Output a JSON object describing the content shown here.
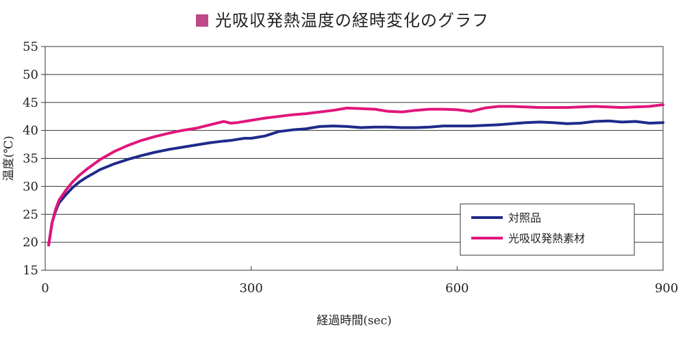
{
  "chart_data": {
    "type": "line",
    "title": "光吸収発熱温度の経時変化のグラフ",
    "title_marker_color": "#c0498a",
    "xlabel": "経過時間(sec)",
    "ylabel": "温度(℃)",
    "xlim": [
      0,
      900
    ],
    "ylim": [
      15,
      55
    ],
    "xticks": [
      0,
      300,
      600,
      900
    ],
    "yticks": [
      15,
      20,
      25,
      30,
      35,
      40,
      45,
      50,
      55
    ],
    "grid": "horizontal",
    "legend_position": "bottom-right",
    "series": [
      {
        "name": "対照品",
        "color": "#1f2a8a",
        "x": [
          5,
          10,
          15,
          20,
          30,
          40,
          50,
          60,
          80,
          100,
          120,
          140,
          160,
          180,
          200,
          220,
          240,
          260,
          270,
          280,
          290,
          300,
          320,
          340,
          360,
          380,
          400,
          420,
          440,
          460,
          480,
          500,
          520,
          540,
          560,
          580,
          600,
          620,
          640,
          660,
          680,
          700,
          720,
          740,
          760,
          780,
          800,
          820,
          840,
          860,
          880,
          900
        ],
        "y": [
          19.5,
          23.5,
          25.5,
          27.0,
          28.5,
          29.8,
          30.8,
          31.6,
          33.0,
          34.0,
          34.8,
          35.5,
          36.1,
          36.6,
          37.0,
          37.4,
          37.8,
          38.1,
          38.2,
          38.4,
          38.6,
          38.6,
          39.0,
          39.8,
          40.1,
          40.3,
          40.7,
          40.8,
          40.7,
          40.5,
          40.6,
          40.6,
          40.5,
          40.5,
          40.6,
          40.8,
          40.8,
          40.8,
          40.9,
          41.0,
          41.2,
          41.4,
          41.5,
          41.4,
          41.2,
          41.3,
          41.6,
          41.7,
          41.5,
          41.6,
          41.3,
          41.4
        ]
      },
      {
        "name": "光吸収発熱素材",
        "color": "#e0157c",
        "x": [
          5,
          10,
          15,
          20,
          30,
          40,
          50,
          60,
          80,
          100,
          120,
          140,
          160,
          180,
          200,
          220,
          240,
          260,
          270,
          280,
          290,
          300,
          320,
          340,
          360,
          380,
          400,
          420,
          440,
          460,
          480,
          500,
          520,
          540,
          560,
          580,
          600,
          620,
          640,
          660,
          680,
          700,
          720,
          740,
          760,
          780,
          800,
          820,
          840,
          860,
          880,
          900
        ],
        "y": [
          19.5,
          23.5,
          25.8,
          27.5,
          29.3,
          30.8,
          32.0,
          33.0,
          34.8,
          36.2,
          37.3,
          38.2,
          38.9,
          39.5,
          40.0,
          40.4,
          41.0,
          41.6,
          41.3,
          41.4,
          41.6,
          41.8,
          42.2,
          42.5,
          42.8,
          43.0,
          43.3,
          43.6,
          44.0,
          43.9,
          43.8,
          43.4,
          43.3,
          43.6,
          43.8,
          43.8,
          43.7,
          43.4,
          44.0,
          44.3,
          44.3,
          44.2,
          44.1,
          44.1,
          44.1,
          44.2,
          44.3,
          44.2,
          44.1,
          44.2,
          44.3,
          44.6
        ]
      }
    ]
  }
}
